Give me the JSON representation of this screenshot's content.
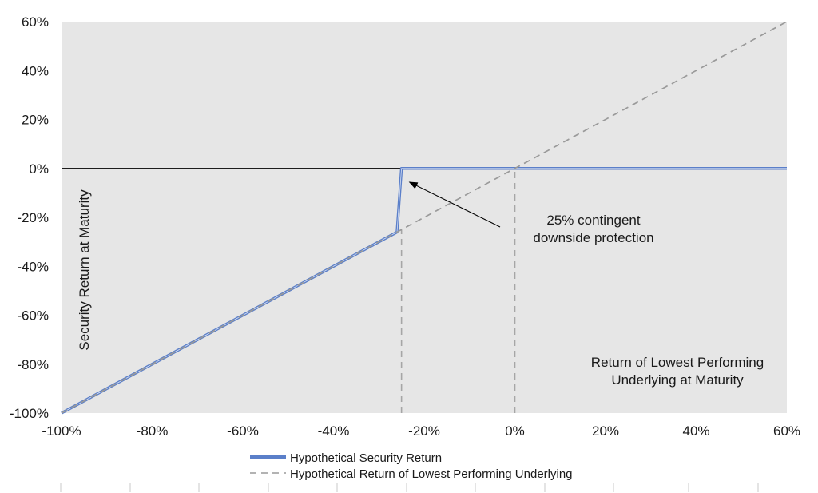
{
  "chart_data": {
    "type": "line",
    "xlim": [
      -100,
      60
    ],
    "ylim": [
      -100,
      60
    ],
    "x_ticks": [
      -100,
      -80,
      -60,
      -40,
      -20,
      0,
      20,
      40,
      60
    ],
    "y_ticks": [
      -100,
      -80,
      -60,
      -40,
      -20,
      0,
      20,
      40,
      60
    ],
    "x_tick_labels": [
      "-100%",
      "-80%",
      "-60%",
      "-40%",
      "-20%",
      "0%",
      "20%",
      "40%",
      "60%"
    ],
    "y_tick_labels": [
      "-100%",
      "-80%",
      "-60%",
      "-40%",
      "-20%",
      "0%",
      "20%",
      "40%",
      "60%"
    ],
    "xlabel": "Return of Lowest Performing\nUnderlying at Maturity",
    "ylabel": "Security Return at Maturity",
    "grid": false,
    "legend_position": "bottom",
    "series": [
      {
        "name": "Hypothetical Security Return",
        "style": "solid",
        "color": "#5b7fc9",
        "x": [
          -100,
          -85,
          -70,
          -50,
          -35,
          -26,
          -25,
          60
        ],
        "y": [
          -100,
          -85,
          -70,
          -50,
          -35,
          -26,
          0,
          0
        ]
      },
      {
        "name": "Hypothetical Return of Lowest Performing Underlying",
        "style": "dashed",
        "color": "#9a9a9a",
        "x": [
          -100,
          60
        ],
        "y": [
          -100,
          60
        ]
      }
    ],
    "reference_lines": [
      {
        "x": -25,
        "y_from": -100,
        "y_to": -25
      },
      {
        "x": 0,
        "y_from": -100,
        "y_to": 0
      }
    ],
    "annotation": {
      "text": "25% contingent\ndownside protection",
      "arrow_to": [
        -25,
        -3
      ]
    }
  },
  "colors": {
    "plot_background": "#e6e6e6",
    "zero_line": "#000000",
    "security_line": "#5b7fc9",
    "underlying_line": "#9a9a9a"
  }
}
